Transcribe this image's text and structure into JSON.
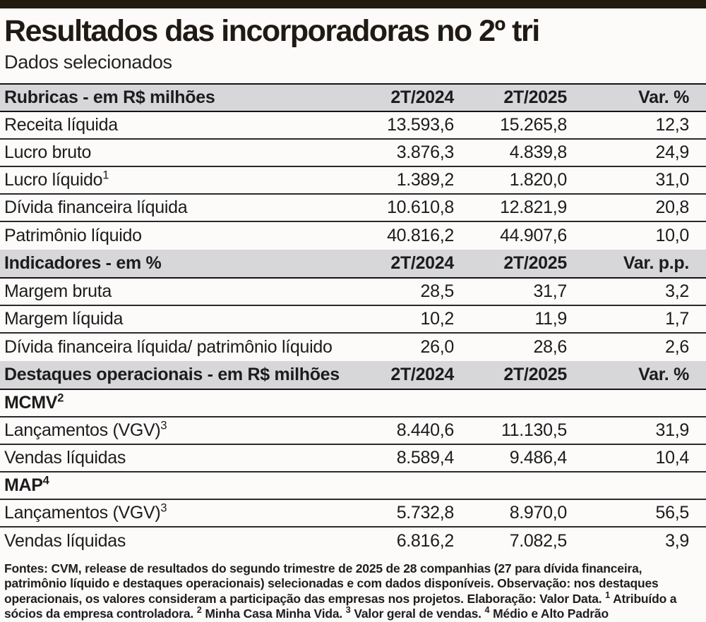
{
  "header": {
    "title": "Resultados das incorporadoras no 2º tri",
    "subtitle": "Dados selecionados"
  },
  "colors": {
    "topbar": "#221a0f",
    "band_background": "#d7d7da",
    "row_line": "#2a2a2e",
    "text": "#1c1c1e",
    "page_background": "#fcfbf9"
  },
  "chart_data": {
    "type": "table",
    "title": "Resultados das incorporadoras no 2º tri",
    "subtitle": "Dados selecionados",
    "sections": [
      {
        "header": {
          "label": "Rubricas - em R$ milhões",
          "cols": [
            "2T/2024",
            "2T/2025",
            "Var. %"
          ]
        },
        "rows": [
          {
            "label": "Receita líquida",
            "sup": "",
            "values": [
              "13.593,6",
              "15.265,8",
              "12,3"
            ]
          },
          {
            "label": "Lucro bruto",
            "sup": "",
            "values": [
              "3.876,3",
              "4.839,8",
              "24,9"
            ]
          },
          {
            "label": "Lucro líquido",
            "sup": "1",
            "values": [
              "1.389,2",
              "1.820,0",
              "31,0"
            ]
          },
          {
            "label": "Dívida financeira líquida",
            "sup": "",
            "values": [
              "10.610,8",
              "12.821,9",
              "20,8"
            ]
          },
          {
            "label": "Patrimônio líquido",
            "sup": "",
            "values": [
              "40.816,2",
              "44.907,6",
              "10,0"
            ]
          }
        ]
      },
      {
        "header": {
          "label": "Indicadores - em %",
          "cols": [
            "2T/2024",
            "2T/2025",
            "Var. p.p."
          ]
        },
        "rows": [
          {
            "label": "Margem bruta",
            "sup": "",
            "values": [
              "28,5",
              "31,7",
              "3,2"
            ]
          },
          {
            "label": "Margem líquida",
            "sup": "",
            "values": [
              "10,2",
              "11,9",
              "1,7"
            ]
          },
          {
            "label": "Dívida financeira líquida/ patrimônio líquido",
            "sup": "",
            "values": [
              "26,0",
              "28,6",
              "2,6"
            ]
          }
        ]
      },
      {
        "header": {
          "label": "Destaques operacionais - em R$ milhões",
          "cols": [
            "2T/2024",
            "2T/2025",
            "Var. %"
          ]
        },
        "rows": [
          {
            "label": "MCMV",
            "sup": "2",
            "values": [
              "",
              "",
              ""
            ]
          },
          {
            "label": "Lançamentos (VGV)",
            "sup": "3",
            "values": [
              "8.440,6",
              "11.130,5",
              "31,9"
            ]
          },
          {
            "label": "Vendas líquidas",
            "sup": "",
            "values": [
              "8.589,4",
              "9.486,4",
              "10,4"
            ]
          },
          {
            "label": "MAP",
            "sup": "4",
            "values": [
              "",
              "",
              ""
            ]
          },
          {
            "label": "Lançamentos (VGV)",
            "sup": "3",
            "values": [
              "5.732,8",
              "8.970,0",
              "56,5"
            ]
          },
          {
            "label": "Vendas líquidas",
            "sup": "",
            "values": [
              "6.816,2",
              "7.082,5",
              "3,9"
            ]
          }
        ]
      }
    ]
  },
  "footer": {
    "segments": [
      {
        "sup": "",
        "text": "Fontes: CVM, release de resultados do segundo trimestre de 2025 de 28 companhias (27 para dívida financeira, patrimônio líquido e destaques operacionais) selecionadas e com dados disponíveis. Observação: nos destaques operacionais, os valores consideram a participação das empresas nos projetos. Elaboração: Valor Data."
      },
      {
        "sup": "1",
        "text": " Atribuído a sócios da empresa controladora."
      },
      {
        "sup": "2",
        "text": " Minha Casa Minha Vida."
      },
      {
        "sup": "3",
        "text": " Valor geral de vendas."
      },
      {
        "sup": "4",
        "text": " Médio e Alto Padrão"
      }
    ]
  }
}
